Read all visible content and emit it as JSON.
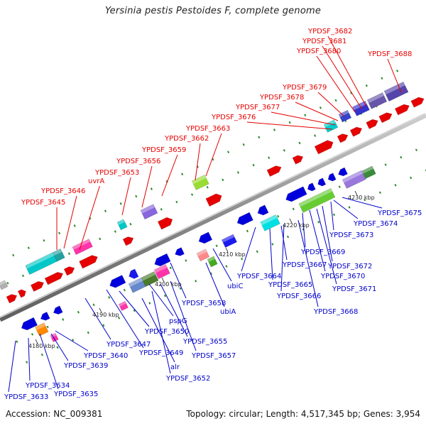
{
  "title": "Yersinia pestis Pestoides F, complete genome",
  "footer": {
    "accession": "Accession: NC_009381",
    "stats": "Topology: circular; Length: 4,517,345 bp; Genes: 3,954"
  },
  "colors": {
    "forward_label": "#e60000",
    "reverse_label": "#0000cc",
    "backbone": "#8a8a8a",
    "tick": "#2a8a2a"
  },
  "scale_labels": [
    "4180 kbp",
    "4190 kbp",
    "4200 kbp",
    "4210 kbp",
    "4220 kbp",
    "4230 kbp"
  ],
  "forward_labels": [
    "YPDSF_3645",
    "YPDSF_3646",
    "uvrA",
    "YPDSF_3653",
    "YPDSF_3656",
    "YPDSF_3659",
    "YPDSF_3662",
    "YPDSF_3663",
    "YPDSF_3676",
    "YPDSF_3677",
    "YPDSF_3678",
    "YPDSF_3679",
    "YPDSF_3680",
    "YPDSF_3681",
    "YPDSF_3682",
    "YPDSF_3688"
  ],
  "reverse_labels": [
    "YPDSF_3633",
    "YPDSF_3634",
    "YPDSF_3635",
    "YPDSF_3639",
    "YPDSF_3640",
    "YPDSF_3647",
    "YPDSF_3649",
    "alr",
    "YPDSF_3652",
    "YPDSF_3650",
    "pspG",
    "YPDSF_3655",
    "YPDSF_3657",
    "YPDSF_3658",
    "ubiA",
    "ubiC",
    "YPDSF_3664",
    "YPDSF_3665",
    "YPDSF_3666",
    "YPDSF_3667",
    "YPDSF_3668",
    "YPDSF_3669",
    "YPDSF_3670",
    "YPDSF_3671",
    "YPDSF_3672",
    "YPDSF_3673",
    "YPDSF_3674",
    "YPDSF_3675"
  ]
}
